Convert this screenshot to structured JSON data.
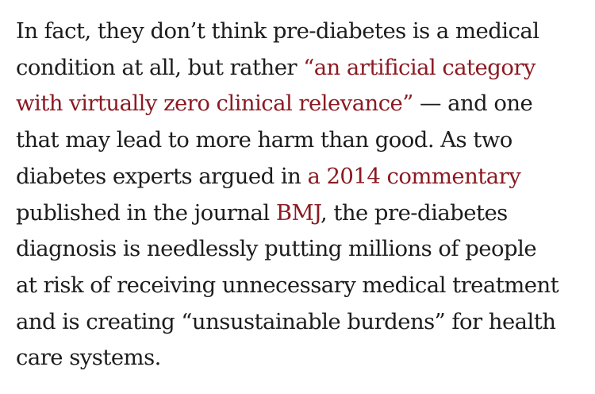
{
  "article": {
    "paragraph": {
      "l1": "In fact, they don’t think pre-diabetes is a medical",
      "l2_pre": "condition at all, but rather ",
      "link_artificial_a": "“an artificial category",
      "link_artificial_b": "with virtually zero clinical relevance”",
      "l3_post": " — and one",
      "l4": "that may lead to more harm than good. As two",
      "l5_pre": "diabetes experts argued in ",
      "link_commentary": "a 2014 commentary",
      "l6_pre": "published in the journal ",
      "link_bmj": "BMJ",
      "l6_post": ", the pre-diabetes",
      "l7": "diagnosis is needlessly putting millions of people",
      "l8": "at risk of receiving unnecessary medical treatment",
      "l9": "and is creating “unsustainable burdens” for health",
      "l10": "care systems."
    },
    "colors": {
      "text": "#1c1c1c",
      "link": "#8b1a22",
      "background": "#ffffff"
    }
  }
}
